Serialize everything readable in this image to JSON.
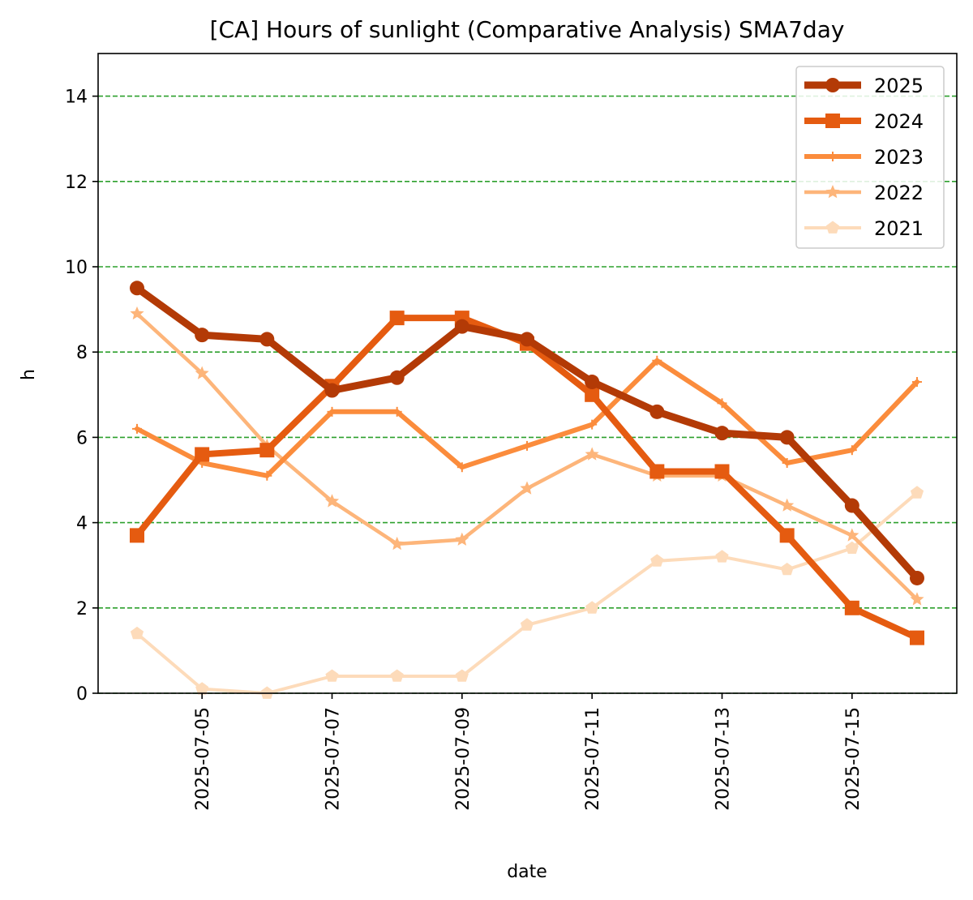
{
  "chart_data": {
    "type": "line",
    "title": "[CA] Hours of sunlight (Comparative Analysis) SMA7day",
    "xlabel": "date",
    "ylabel": "h",
    "ylim": [
      0,
      15
    ],
    "yticks": [
      0,
      2,
      4,
      6,
      8,
      10,
      12,
      14
    ],
    "xtick_labels": [
      "2025-07-05",
      "2025-07-07",
      "2025-07-09",
      "2025-07-11",
      "2025-07-13",
      "2025-07-15"
    ],
    "grid": "horizontal dashed",
    "grid_color": "#2ca02c",
    "legend_position": "top-right",
    "x": [
      "2025-07-04",
      "2025-07-05",
      "2025-07-06",
      "2025-07-07",
      "2025-07-08",
      "2025-07-09",
      "2025-07-10",
      "2025-07-11",
      "2025-07-12",
      "2025-07-13",
      "2025-07-14",
      "2025-07-15",
      "2025-07-16"
    ],
    "series": [
      {
        "name": "2025",
        "color": "#b33a06",
        "marker": "circle",
        "values": [
          9.5,
          8.4,
          8.3,
          7.1,
          7.4,
          8.6,
          8.3,
          7.3,
          6.6,
          6.1,
          6.0,
          4.4,
          2.7
        ]
      },
      {
        "name": "2024",
        "color": "#e55b10",
        "marker": "square",
        "values": [
          3.7,
          5.6,
          5.7,
          7.2,
          8.8,
          8.8,
          8.2,
          7.0,
          5.2,
          5.2,
          3.7,
          2.0,
          1.3
        ]
      },
      {
        "name": "2023",
        "color": "#fb8c3c",
        "marker": "plus",
        "values": [
          6.2,
          5.4,
          5.1,
          6.6,
          6.6,
          5.3,
          5.8,
          6.3,
          7.8,
          6.8,
          5.4,
          5.7,
          7.3
        ]
      },
      {
        "name": "2022",
        "color": "#fdb57a",
        "marker": "star",
        "values": [
          8.9,
          7.5,
          5.8,
          4.5,
          3.5,
          3.6,
          4.8,
          5.6,
          5.1,
          5.1,
          4.4,
          3.7,
          2.2
        ]
      },
      {
        "name": "2021",
        "color": "#fddbba",
        "marker": "pentagon",
        "values": [
          1.4,
          0.1,
          0.0,
          0.4,
          0.4,
          0.4,
          1.6,
          2.0,
          3.1,
          3.2,
          2.9,
          3.4,
          4.7
        ]
      }
    ]
  }
}
